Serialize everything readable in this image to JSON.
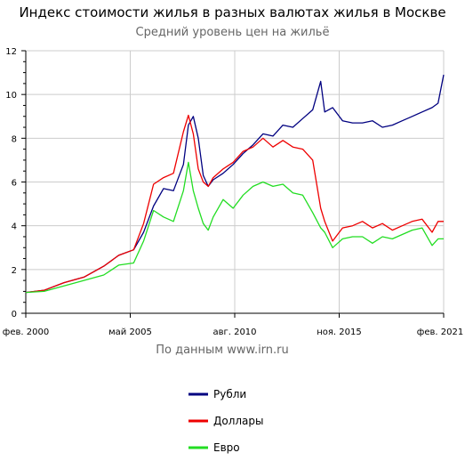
{
  "chart_data": {
    "type": "line",
    "title": "Индекс стоимости жилья в разных валютах жилья в Москве",
    "subtitle": "Средний уровень цен на жильё",
    "source": "По данным www.irn.ru",
    "ylim": [
      0,
      12
    ],
    "yticks": [
      "0",
      "2",
      "4",
      "6",
      "8",
      "10",
      "12"
    ],
    "xlim": [
      2000.08,
      2021.08
    ],
    "xticks": [
      {
        "x": 2000.08,
        "label": "фев. 2000"
      },
      {
        "x": 2005.33,
        "label": "май 2005"
      },
      {
        "x": 2010.58,
        "label": "авг. 2010"
      },
      {
        "x": 2015.83,
        "label": "ноя. 2015"
      },
      {
        "x": 2021.08,
        "label": "фев. 2021"
      }
    ],
    "grid": true,
    "legend_position": "bottom",
    "series": [
      {
        "name": "Рубли",
        "color": "#000080",
        "x": [
          2000.08,
          2001,
          2002,
          2003,
          2004,
          2004.75,
          2005.5,
          2006,
          2006.5,
          2007,
          2007.5,
          2008,
          2008.25,
          2008.5,
          2008.75,
          2009,
          2009.25,
          2009.5,
          2010,
          2010.5,
          2011,
          2011.5,
          2012,
          2012.5,
          2013,
          2013.5,
          2014,
          2014.5,
          2014.9,
          2015.1,
          2015.5,
          2016,
          2016.5,
          2017,
          2017.5,
          2018,
          2018.5,
          2019,
          2019.5,
          2020,
          2020.5,
          2020.8,
          2021.08
        ],
        "y": [
          0.95,
          1.05,
          1.4,
          1.65,
          2.15,
          2.65,
          2.9,
          3.7,
          4.9,
          5.7,
          5.6,
          6.8,
          8.6,
          9.0,
          8.0,
          6.3,
          5.8,
          6.1,
          6.4,
          6.8,
          7.3,
          7.7,
          8.2,
          8.1,
          8.6,
          8.5,
          8.9,
          9.3,
          10.6,
          9.2,
          9.4,
          8.8,
          8.7,
          8.7,
          8.8,
          8.5,
          8.6,
          8.8,
          9.0,
          9.2,
          9.4,
          9.6,
          10.9
        ]
      },
      {
        "name": "Доллары",
        "color": "#ee0000",
        "x": [
          2000.08,
          2001,
          2002,
          2003,
          2004,
          2004.75,
          2005.5,
          2006,
          2006.5,
          2007,
          2007.5,
          2008,
          2008.25,
          2008.5,
          2008.75,
          2009,
          2009.25,
          2009.5,
          2010,
          2010.5,
          2011,
          2011.5,
          2012,
          2012.5,
          2013,
          2013.5,
          2014,
          2014.5,
          2014.9,
          2015.1,
          2015.5,
          2016,
          2016.5,
          2017,
          2017.5,
          2018,
          2018.5,
          2019,
          2019.5,
          2020,
          2020.5,
          2020.8,
          2021.08
        ],
        "y": [
          0.95,
          1.05,
          1.4,
          1.65,
          2.15,
          2.65,
          2.9,
          4.1,
          5.9,
          6.2,
          6.4,
          8.3,
          9.05,
          8.2,
          6.6,
          6.0,
          5.8,
          6.2,
          6.6,
          6.9,
          7.4,
          7.6,
          8.0,
          7.6,
          7.9,
          7.6,
          7.5,
          7.0,
          4.8,
          4.2,
          3.3,
          3.9,
          4.0,
          4.2,
          3.9,
          4.1,
          3.8,
          4.0,
          4.2,
          4.3,
          3.7,
          4.2,
          4.2
        ]
      },
      {
        "name": "Евро",
        "color": "#22dd22",
        "x": [
          2000.08,
          2001,
          2002,
          2003,
          2004,
          2004.75,
          2005.5,
          2006,
          2006.5,
          2007,
          2007.5,
          2008,
          2008.25,
          2008.5,
          2008.75,
          2009,
          2009.25,
          2009.5,
          2010,
          2010.5,
          2011,
          2011.5,
          2012,
          2012.5,
          2013,
          2013.5,
          2014,
          2014.5,
          2014.9,
          2015.1,
          2015.5,
          2016,
          2016.5,
          2017,
          2017.5,
          2018,
          2018.5,
          2019,
          2019.5,
          2020,
          2020.5,
          2020.8,
          2021.08
        ],
        "y": [
          0.95,
          1.0,
          1.25,
          1.5,
          1.75,
          2.2,
          2.3,
          3.3,
          4.7,
          4.4,
          4.2,
          5.6,
          6.9,
          5.6,
          4.8,
          4.1,
          3.8,
          4.4,
          5.2,
          4.8,
          5.4,
          5.8,
          6.0,
          5.8,
          5.9,
          5.5,
          5.4,
          4.6,
          3.9,
          3.7,
          3.0,
          3.4,
          3.5,
          3.5,
          3.2,
          3.5,
          3.4,
          3.6,
          3.8,
          3.9,
          3.1,
          3.4,
          3.4
        ]
      }
    ]
  }
}
